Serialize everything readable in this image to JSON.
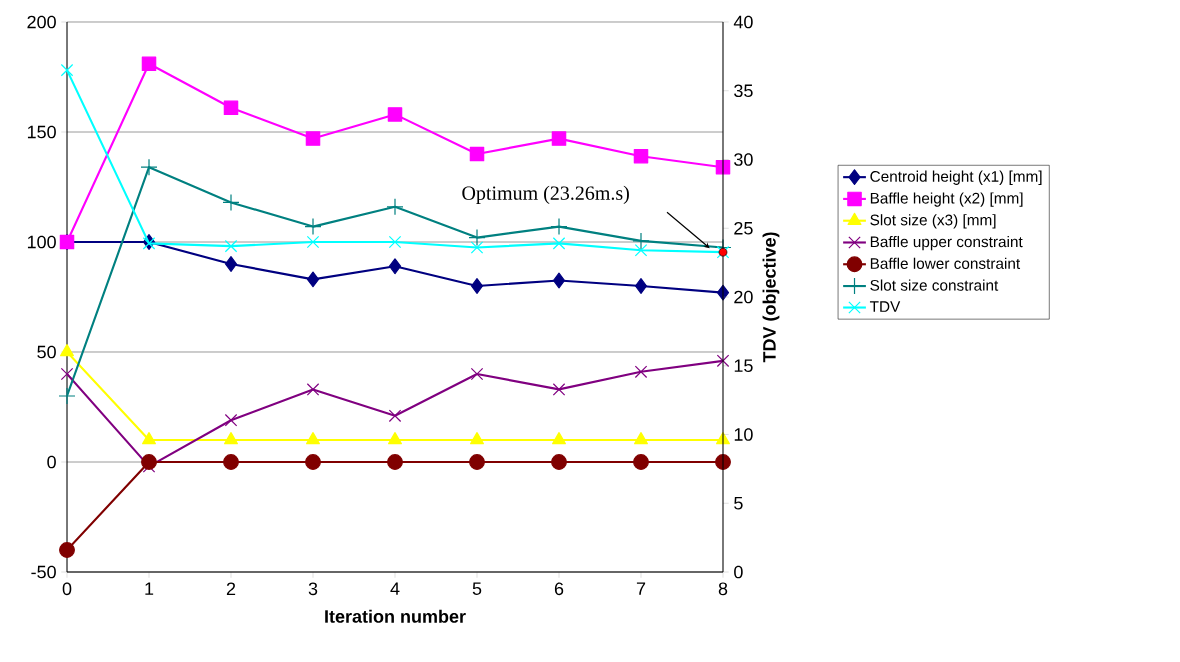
{
  "chart_data": {
    "type": "line",
    "xlabel": "Iteration number",
    "y2label": "TDV (objective)",
    "x": [
      0,
      1,
      2,
      3,
      4,
      5,
      6,
      7,
      8
    ],
    "xlim": [
      0,
      8
    ],
    "xticks": [
      0,
      1,
      2,
      3,
      4,
      5,
      6,
      7,
      8
    ],
    "ylim": [
      -50,
      200
    ],
    "yticks": [
      -50,
      0,
      50,
      100,
      150,
      200
    ],
    "y2lim": [
      0,
      40
    ],
    "y2ticks": [
      0,
      5,
      10,
      15,
      20,
      25,
      30,
      35,
      40
    ],
    "grid": "y",
    "legend": "right",
    "line_style": "solid",
    "series": [
      {
        "name": "Centroid height (x1) [mm]",
        "color": "#000080",
        "marker": "diamond",
        "values": [
          100,
          100,
          90,
          83,
          89,
          80,
          82.5,
          80,
          77
        ]
      },
      {
        "name": "Baffle height (x2) [mm]",
        "color": "#ff00ff",
        "marker": "square",
        "values": [
          100,
          181,
          161,
          147,
          158,
          140,
          147,
          139,
          134
        ]
      },
      {
        "name": "Slot size (x3) [mm]",
        "color": "#ffff00",
        "marker": "triangle",
        "values": [
          50,
          10,
          10,
          10,
          10,
          10,
          10,
          10,
          10
        ]
      },
      {
        "name": "Baffle upper constraint",
        "color": "#800080",
        "marker": "cross",
        "values": [
          40,
          -2,
          19,
          33,
          21,
          40,
          33,
          41,
          46
        ]
      },
      {
        "name": "Baffle lower constraint",
        "color": "#800000",
        "marker": "circle",
        "values": [
          -40,
          0,
          0,
          0,
          0,
          0,
          0,
          0,
          0
        ]
      },
      {
        "name": "Slot size constraint",
        "color": "#008080",
        "marker": "plus",
        "values": [
          30,
          134,
          118,
          107,
          116,
          102,
          107,
          100.5,
          97.5
        ]
      },
      {
        "name": "TDV",
        "color": "#00ffff",
        "marker": "cross",
        "axis": "y2",
        "values": [
          36.5,
          23.9,
          23.7,
          24,
          24,
          23.6,
          23.9,
          23.4,
          23.26
        ]
      },
      {
        "type": "scatter",
        "color": "#ff0000",
        "marker": "circle",
        "axis": "y2",
        "x": [
          8
        ],
        "values": [
          23.26
        ]
      }
    ],
    "annotations": [
      "Optimum (23.26m.s)"
    ]
  }
}
